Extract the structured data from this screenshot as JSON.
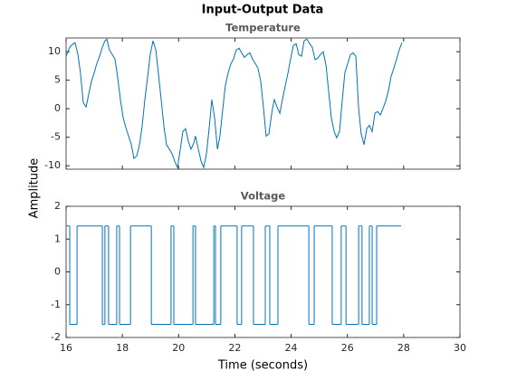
{
  "title": "Input-Output Data",
  "ylabel": "Amplitude",
  "chart_data": [
    {
      "type": "line",
      "title": "Temperature",
      "x": [
        16.0,
        16.13,
        16.23,
        16.32,
        16.42,
        16.51,
        16.61,
        16.71,
        16.8,
        16.9,
        17.0,
        17.09,
        17.19,
        17.29,
        17.38,
        17.45,
        17.54,
        17.64,
        17.74,
        17.83,
        17.93,
        18.03,
        18.12,
        18.22,
        18.32,
        18.41,
        18.51,
        18.61,
        18.7,
        18.8,
        18.9,
        18.99,
        19.09,
        19.19,
        19.28,
        19.38,
        19.48,
        19.57,
        19.67,
        19.77,
        19.86,
        19.96,
        20.06,
        20.15,
        20.25,
        20.34,
        20.44,
        20.54,
        20.6,
        20.7,
        20.8,
        20.89,
        20.99,
        21.09,
        21.18,
        21.28,
        21.38,
        21.47,
        21.57,
        21.66,
        21.76,
        21.86,
        21.95,
        22.05,
        22.15,
        22.24,
        22.34,
        22.44,
        22.53,
        22.63,
        22.73,
        22.82,
        22.92,
        23.02,
        23.11,
        23.21,
        23.31,
        23.4,
        23.5,
        23.6,
        23.69,
        23.79,
        23.89,
        23.98,
        24.08,
        24.18,
        24.27,
        24.37,
        24.46,
        24.56,
        24.66,
        24.75,
        24.85,
        24.95,
        25.04,
        25.14,
        25.24,
        25.33,
        25.43,
        25.53,
        25.62,
        25.72,
        25.82,
        25.91,
        26.01,
        26.11,
        26.2,
        26.3,
        26.4,
        26.49,
        26.59,
        26.69,
        26.78,
        26.88,
        26.98,
        27.07,
        27.17,
        27.26,
        27.36,
        27.46,
        27.55,
        27.65,
        27.75,
        27.84,
        27.94
      ],
      "series": [
        {
          "color": "#0072bd",
          "values": [
            9.2,
            10.8,
            11.3,
            11.6,
            9.5,
            6.3,
            1.1,
            0.3,
            2.4,
            4.8,
            6.3,
            7.9,
            9.2,
            10.8,
            11.9,
            12.2,
            10.3,
            9.5,
            8.7,
            5.6,
            1.6,
            -1.6,
            -3.2,
            -4.8,
            -6.3,
            -8.7,
            -8.3,
            -6.3,
            -3.2,
            1.6,
            5.6,
            9.5,
            11.9,
            10.3,
            6.3,
            1.6,
            -3.2,
            -6.3,
            -7.1,
            -7.9,
            -9.2,
            -10.3,
            -7.1,
            -4.0,
            -3.5,
            -5.6,
            -7.1,
            -6.0,
            -4.8,
            -7.1,
            -9.2,
            -10.3,
            -7.9,
            -3.2,
            1.6,
            -1.6,
            -7.1,
            -4.8,
            0,
            4.0,
            6.3,
            7.9,
            8.7,
            10.3,
            10.6,
            9.8,
            9.0,
            9.5,
            9.8,
            8.7,
            7.9,
            7.1,
            4.8,
            0,
            -4.8,
            -4.4,
            -0.8,
            1.6,
            0.3,
            -0.8,
            1.6,
            4.0,
            6.3,
            8.7,
            11.1,
            11.4,
            9.5,
            9.2,
            11.9,
            12.2,
            11.4,
            10.8,
            8.6,
            8.9,
            9.5,
            10,
            7.6,
            3.2,
            -1.6,
            -4.0,
            -5.1,
            -4.0,
            1.6,
            6.3,
            7.9,
            9.5,
            9.8,
            9.2,
            0,
            -4.4,
            -6.3,
            -3.5,
            -2.9,
            -4.0,
            -0.8,
            -0.5,
            -1.1,
            0,
            1.3,
            3.2,
            5.6,
            7.1,
            8.7,
            10.3,
            11.6
          ]
        }
      ],
      "xlim": [
        16,
        30
      ],
      "xticks": [
        16,
        18,
        20,
        22,
        24,
        26,
        28,
        30
      ],
      "ylim": [
        -10.6,
        12.4
      ],
      "yticks": [
        -10,
        -5,
        0,
        5,
        10
      ]
    },
    {
      "type": "line",
      "step": "post",
      "title": "Voltage",
      "xlabel": "Time (seconds)",
      "x": [
        16.0,
        16.13,
        16.39,
        17.29,
        17.38,
        17.51,
        17.8,
        17.9,
        18.29,
        19.03,
        19.73,
        19.83,
        20.51,
        20.6,
        21.25,
        21.31,
        21.5,
        22.08,
        22.24,
        22.66,
        23.08,
        23.24,
        23.53,
        24.63,
        24.82,
        25.46,
        25.78,
        25.95,
        26.4,
        26.52,
        26.78,
        26.88,
        27.04,
        27.91
      ],
      "series": [
        {
          "color": "#0072bd",
          "values": [
            1.4,
            -1.6,
            1.4,
            -1.6,
            1.4,
            -1.6,
            1.4,
            -1.6,
            1.4,
            -1.6,
            1.4,
            -1.6,
            1.4,
            -1.6,
            1.4,
            -1.6,
            1.4,
            -1.6,
            1.4,
            -1.6,
            1.4,
            -1.6,
            1.4,
            -1.6,
            1.4,
            -1.6,
            1.4,
            -1.6,
            1.4,
            -1.6,
            1.4,
            -1.6,
            1.4,
            1.4
          ]
        }
      ],
      "xlim": [
        16,
        30
      ],
      "xticks": [
        16,
        18,
        20,
        22,
        24,
        26,
        28,
        30
      ],
      "ylim": [
        -2,
        2
      ],
      "yticks": [
        -2,
        -1,
        0,
        1,
        2
      ]
    }
  ]
}
